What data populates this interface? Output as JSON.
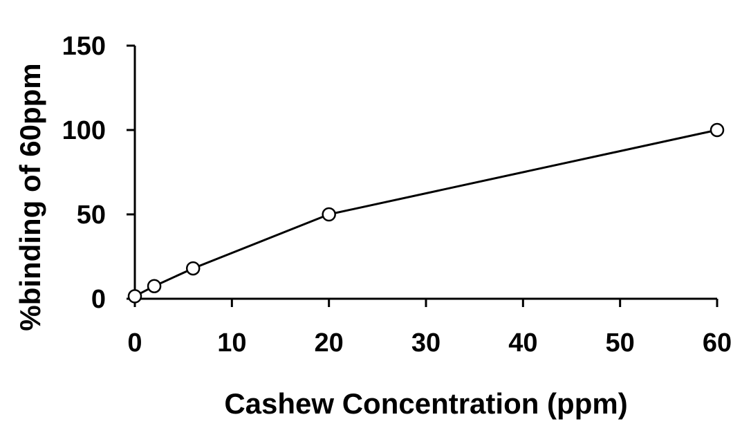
{
  "chart_data": {
    "type": "line",
    "title": "",
    "xlabel": "Cashew Concentration (ppm)",
    "ylabel": "%binding of 60ppm",
    "xlim": [
      0,
      60
    ],
    "ylim": [
      0,
      150
    ],
    "xticks": [
      0,
      10,
      20,
      30,
      40,
      50,
      60
    ],
    "yticks": [
      0,
      50,
      100,
      150
    ],
    "xtick_labels": [
      "0",
      "10",
      "20",
      "30",
      "40",
      "50",
      "60"
    ],
    "ytick_labels": [
      "0",
      "50",
      "100",
      "150"
    ],
    "grid": false,
    "legend": "none",
    "series": [
      {
        "x": [
          0,
          2,
          6,
          20,
          60
        ],
        "y": [
          1.5,
          7.5,
          18,
          50,
          100
        ],
        "color": "#000000",
        "marker": "open-circle"
      }
    ]
  }
}
